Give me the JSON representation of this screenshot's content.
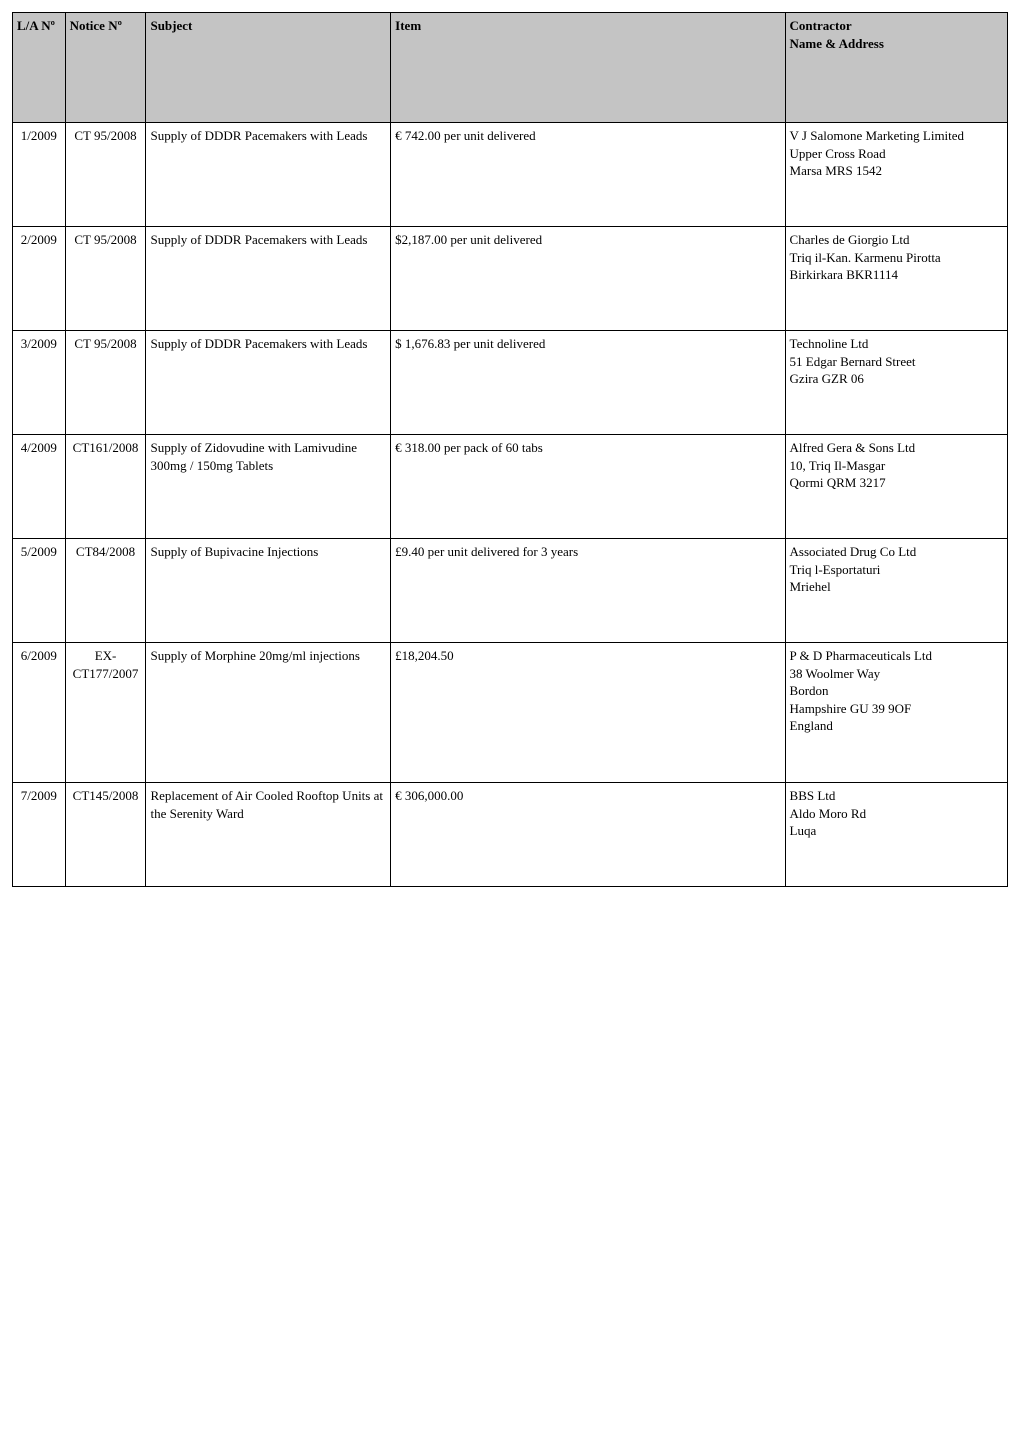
{
  "columns": {
    "la": "L/A Nº",
    "notice": "Notice Nº",
    "subject": "Subject",
    "item": "Item",
    "contractor_label": "Contractor",
    "contractor_sub": "Name & Address"
  },
  "rows": [
    {
      "la": "1/2009",
      "notice": "CT 95/2008",
      "subject": "Supply of DDDR Pacemakers with Leads",
      "item": "€ 742.00 per unit delivered",
      "contractor": [
        "V J Salomone Marketing Limited",
        "Upper Cross Road",
        "Marsa MRS 1542"
      ]
    },
    {
      "la": "2/2009",
      "notice": "CT 95/2008",
      "subject": "Supply of DDDR Pacemakers with Leads",
      "item": "$2,187.00 per unit delivered",
      "contractor": [
        "Charles de Giorgio Ltd",
        "Triq il-Kan. Karmenu Pirotta",
        "Birkirkara BKR1114"
      ]
    },
    {
      "la": "3/2009",
      "notice": "CT 95/2008",
      "subject": "Supply of DDDR Pacemakers with Leads",
      "item": "$ 1,676.83 per unit delivered",
      "contractor": [
        "Technoline Ltd",
        "51 Edgar Bernard Street",
        "Gzira GZR 06"
      ]
    },
    {
      "la": "4/2009",
      "notice": "CT161/2008",
      "subject": "Supply of Zidovudine with Lamivudine 300mg / 150mg Tablets",
      "item": "€ 318.00 per pack of 60 tabs",
      "contractor": [
        "Alfred Gera & Sons Ltd",
        "10, Triq Il-Masgar",
        "Qormi QRM 3217"
      ]
    },
    {
      "la": "5/2009",
      "notice": "CT84/2008",
      "subject": "Supply of Bupivacine Injections",
      "item": "£9.40 per unit delivered for 3 years",
      "contractor": [
        "Associated Drug Co Ltd",
        "Triq l-Esportaturi",
        "Mriehel"
      ]
    },
    {
      "la": "6/2009",
      "notice": "EX-CT177/2007",
      "subject": "Supply of Morphine 20mg/ml injections",
      "item": "£18,204.50",
      "contractor": [
        "P & D Pharmaceuticals Ltd",
        "38 Woolmer Way",
        "Bordon",
        "Hampshire GU 39 9OF",
        "England"
      ],
      "tall": true
    },
    {
      "la": "7/2009",
      "notice": "CT145/2008",
      "subject": "Replacement of Air Cooled Rooftop Units at the Serenity Ward",
      "item": "€ 306,000.00",
      "contractor": [
        "BBS Ltd",
        "Aldo Moro Rd",
        "Luqa"
      ]
    }
  ]
}
